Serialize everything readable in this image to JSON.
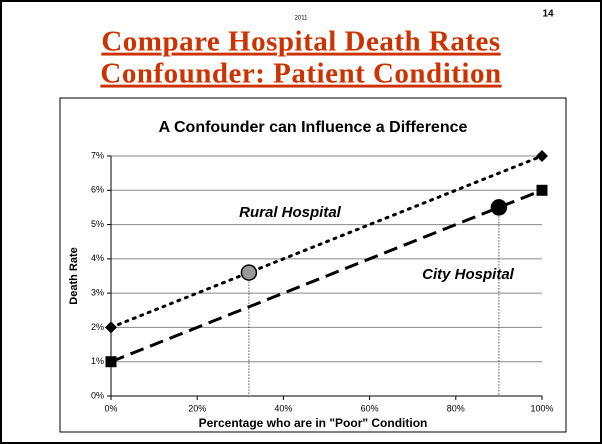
{
  "header": {
    "year": "2011",
    "slide_number": "14",
    "title_lines": [
      "Compare Hospital Death Rates",
      "Confounder: Patient Condition"
    ]
  },
  "chart_data": {
    "type": "line",
    "title": "A Confounder can Influence a Difference",
    "x_label": "Percentage who are in \"Poor\" Condition",
    "y_label": "Death Rate",
    "x": [
      0,
      100
    ],
    "series": [
      {
        "name": "Rural Hospital",
        "color": "#000000",
        "values": [
          2,
          7
        ],
        "dash": "dotted",
        "marker": "diamond"
      },
      {
        "name": "City Hospital",
        "color": "#000000",
        "values": [
          1,
          6
        ],
        "dash": "dashed",
        "marker": "square"
      }
    ],
    "highlight_points": [
      {
        "x": 32,
        "y": 3.6,
        "color": "#999999"
      },
      {
        "x": 90,
        "y": 5.5,
        "color": "#000000"
      }
    ],
    "xlim": [
      0,
      100
    ],
    "xticks": [
      {
        "value": 0,
        "label": "0%"
      },
      {
        "value": 20,
        "label": "20%"
      },
      {
        "value": 40,
        "label": "40%"
      },
      {
        "value": 60,
        "label": "60%"
      },
      {
        "value": 80,
        "label": "80%"
      },
      {
        "value": 100,
        "label": "100%"
      }
    ],
    "ylim": [
      0,
      7
    ],
    "yticks": [
      {
        "value": 0,
        "label": "0%"
      },
      {
        "value": 1,
        "label": "1%"
      },
      {
        "value": 2,
        "label": "2%"
      },
      {
        "value": 3,
        "label": "3%"
      },
      {
        "value": 4,
        "label": "4%"
      },
      {
        "value": 5,
        "label": "5%"
      },
      {
        "value": 6,
        "label": "6%"
      },
      {
        "value": 7,
        "label": "7%"
      }
    ],
    "grid": true
  }
}
